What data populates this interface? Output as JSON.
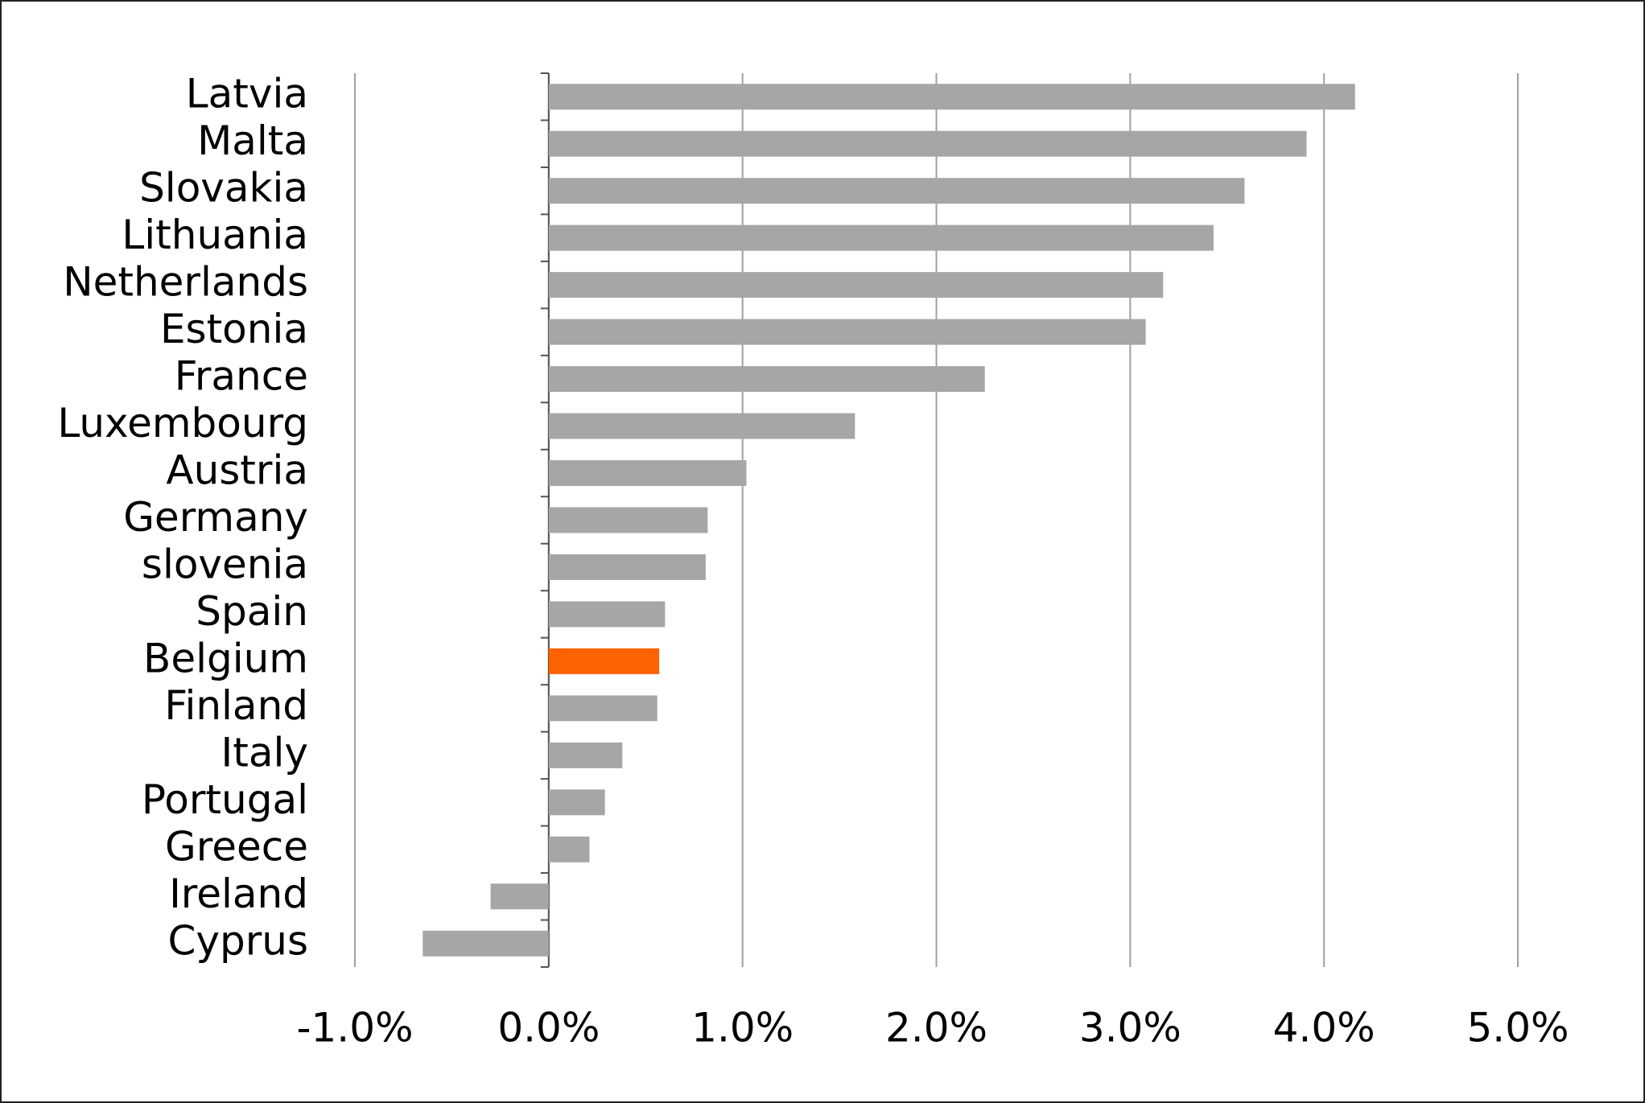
{
  "chart_data": {
    "type": "hbar",
    "categories": [
      "Latvia",
      "Malta",
      "Slovakia",
      "Lithuania",
      "Netherlands",
      "Estonia",
      "France",
      "Luxembourg",
      "Austria",
      "Germany",
      "slovenia",
      "Spain",
      "Belgium",
      "Finland",
      "Italy",
      "Portugal",
      "Greece",
      "Ireland",
      "Cyprus"
    ],
    "values": [
      4.16,
      3.91,
      3.59,
      3.43,
      3.17,
      3.08,
      2.25,
      1.58,
      1.02,
      0.82,
      0.81,
      0.6,
      0.57,
      0.56,
      0.38,
      0.29,
      0.21,
      -0.3,
      -0.65
    ],
    "colors": [
      "#a6a6a6",
      "#a6a6a6",
      "#a6a6a6",
      "#a6a6a6",
      "#a6a6a6",
      "#a6a6a6",
      "#a6a6a6",
      "#a6a6a6",
      "#a6a6a6",
      "#a6a6a6",
      "#a6a6a6",
      "#a6a6a6",
      "#ff6200",
      "#a6a6a6",
      "#a6a6a6",
      "#a6a6a6",
      "#a6a6a6",
      "#a6a6a6",
      "#a6a6a6"
    ],
    "xlim": [
      -1,
      5
    ],
    "xticks": [
      {
        "value": -1,
        "label": "-1.0%"
      },
      {
        "value": 0,
        "label": "0.0%"
      },
      {
        "value": 1,
        "label": "1.0%"
      },
      {
        "value": 2,
        "label": "2.0%"
      },
      {
        "value": 3,
        "label": "3.0%"
      },
      {
        "value": 4,
        "label": "4.0%"
      },
      {
        "value": 5,
        "label": "5.0%"
      }
    ],
    "grid": true
  }
}
